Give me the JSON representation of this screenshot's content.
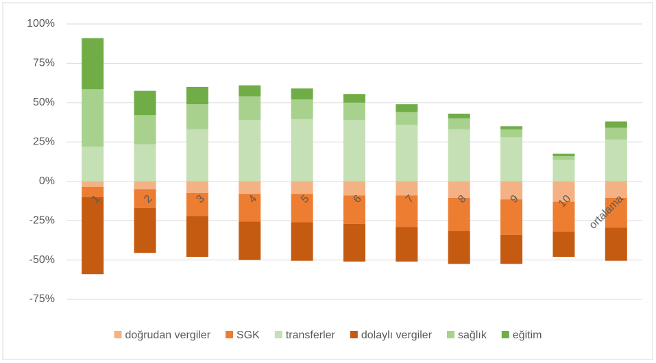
{
  "chart_data": {
    "type": "stacked-bar",
    "categories": [
      "1",
      "2",
      "3",
      "4",
      "5",
      "6",
      "7",
      "8",
      "9",
      "10",
      "ortalama"
    ],
    "series": [
      {
        "name": "doğrudan vergiler",
        "color": "#f4b183",
        "values": [
          -3.5,
          -5,
          -7.5,
          -8,
          -8,
          -9,
          -9,
          -10.5,
          -11.5,
          -13,
          -10.5
        ]
      },
      {
        "name": "SGK",
        "color": "#ed7d31",
        "values": [
          -6.5,
          -12,
          -14.5,
          -17.5,
          -18,
          -18,
          -20,
          -21,
          -22.5,
          -19,
          -19
        ]
      },
      {
        "name": "transferler",
        "color": "#c5e0b4",
        "values": [
          22,
          23.5,
          33,
          39,
          39.5,
          39,
          36,
          33,
          28,
          13.5,
          26.5
        ]
      },
      {
        "name": "dolaylı vergiler",
        "color": "#c55a11",
        "values": [
          -49,
          -28.5,
          -26,
          -24.5,
          -24.5,
          -24,
          -22,
          -21,
          -18.5,
          -16,
          -21
        ]
      },
      {
        "name": "sağlık",
        "color": "#a9d18e",
        "values": [
          36.5,
          18.5,
          16,
          15,
          12.5,
          11,
          8,
          7,
          5,
          2.5,
          7.5
        ]
      },
      {
        "name": "eğitim",
        "color": "#70ad47",
        "values": [
          32.5,
          15.5,
          11,
          7,
          7,
          5.5,
          5,
          3,
          2,
          1.5,
          4
        ]
      }
    ],
    "ylim": [
      -75,
      100
    ],
    "yticks": [
      {
        "value": -75,
        "label": "-75%"
      },
      {
        "value": -50,
        "label": "-50%"
      },
      {
        "value": -25,
        "label": "-25%"
      },
      {
        "value": 0,
        "label": "0%"
      },
      {
        "value": 25,
        "label": "25%"
      },
      {
        "value": 50,
        "label": "50%"
      },
      {
        "value": 75,
        "label": "75%"
      },
      {
        "value": 100,
        "label": "100%"
      }
    ],
    "grid": true,
    "legend": "bottom"
  }
}
